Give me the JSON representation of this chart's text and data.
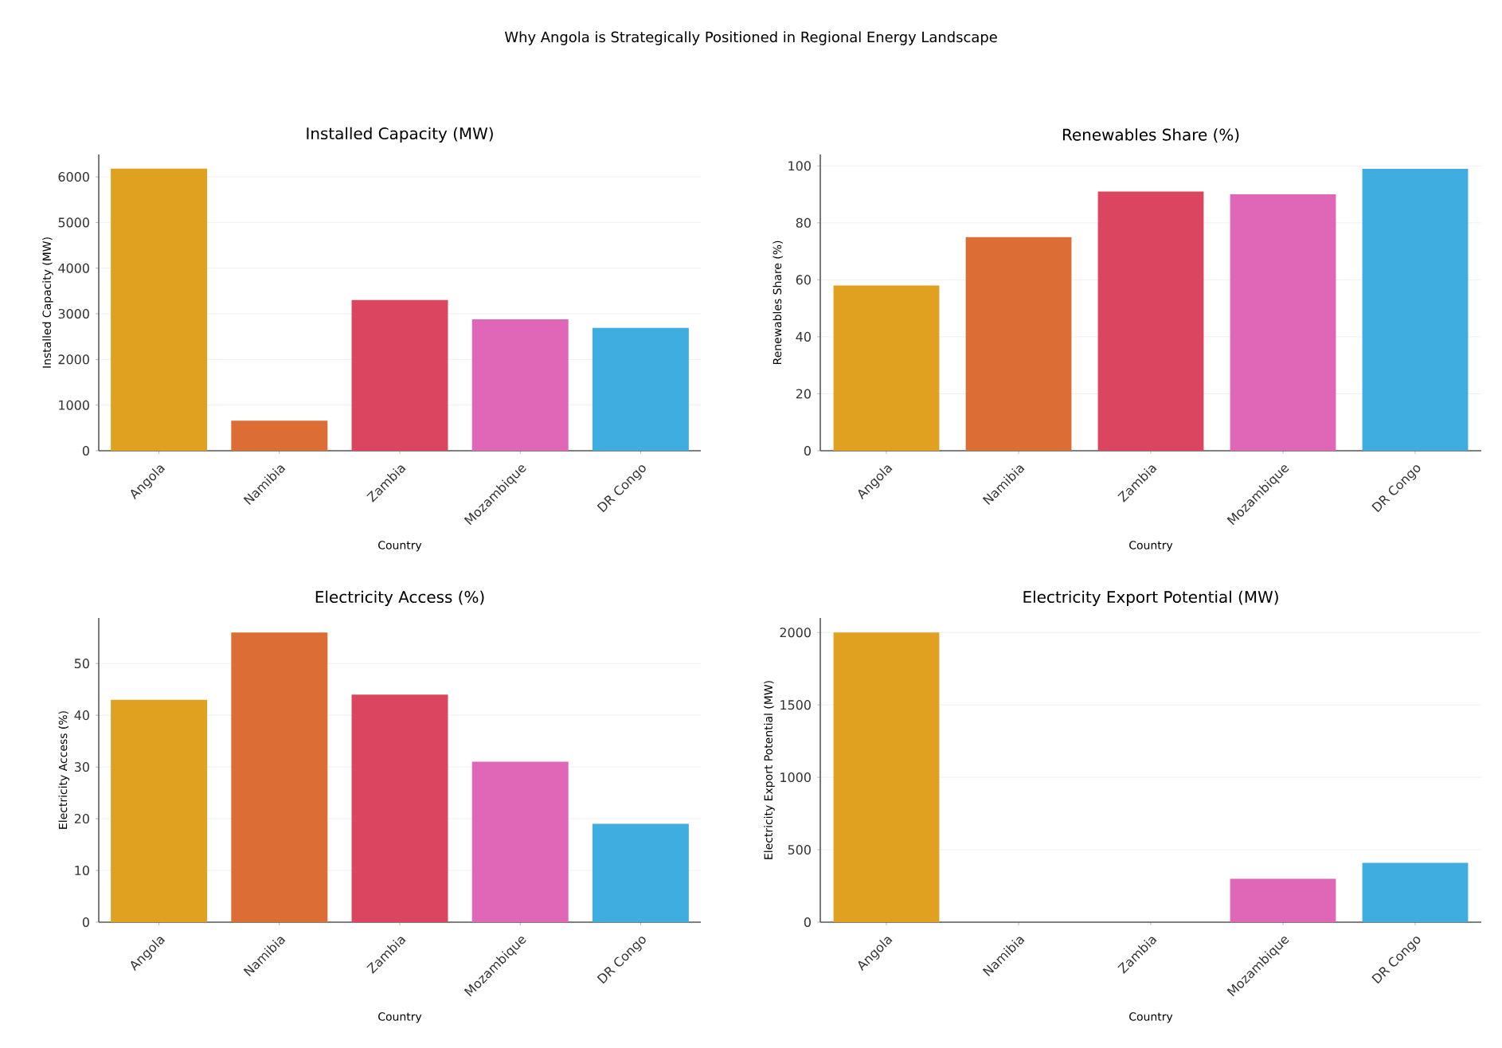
{
  "chart_data": [
    {
      "type": "bar",
      "title": "Installed Capacity (MW)",
      "xlabel": "Country",
      "ylabel": "Installed Capacity (MW)",
      "annotations": [
        "Why Angola is Strategically Positioned in Regional Energy Landscape"
      ],
      "categories": [
        "Angola",
        "Namibia",
        "Zambia",
        "Mozambique",
        "DR Congo"
      ],
      "values": [
        6180,
        660,
        3300,
        2880,
        2690
      ],
      "colors": [
        "#e0a020",
        "#dc6e35",
        "#dc4560",
        "#e066b8",
        "#40ade0"
      ],
      "ylim": [
        0,
        6490
      ],
      "yticks": [
        0,
        1000,
        2000,
        3000,
        4000,
        5000,
        6000
      ],
      "grid": "y"
    },
    {
      "type": "bar",
      "title": "Renewables Share (%)",
      "xlabel": "Country",
      "ylabel": "Renewables Share (%)",
      "categories": [
        "Angola",
        "Namibia",
        "Zambia",
        "Mozambique",
        "DR Congo"
      ],
      "values": [
        58,
        75,
        91,
        90,
        99
      ],
      "colors": [
        "#e0a020",
        "#dc6e35",
        "#dc4560",
        "#e066b8",
        "#40ade0"
      ],
      "ylim": [
        0,
        104
      ],
      "yticks": [
        0,
        20,
        40,
        60,
        80,
        100
      ],
      "grid": "y"
    },
    {
      "type": "bar",
      "title": "Electricity Access (%)",
      "xlabel": "Country",
      "ylabel": "Electricity Access (%)",
      "categories": [
        "Angola",
        "Namibia",
        "Zambia",
        "Mozambique",
        "DR Congo"
      ],
      "values": [
        43,
        56,
        44,
        31,
        19
      ],
      "colors": [
        "#e0a020",
        "#dc6e35",
        "#dc4560",
        "#e066b8",
        "#40ade0"
      ],
      "ylim": [
        0,
        58.8
      ],
      "yticks": [
        0,
        10,
        20,
        30,
        40,
        50
      ],
      "grid": "y"
    },
    {
      "type": "bar",
      "title": "Electricity Export Potential (MW)",
      "xlabel": "Country",
      "ylabel": "Electricity Export Potential (MW)",
      "categories": [
        "Angola",
        "Namibia",
        "Zambia",
        "Mozambique",
        "DR Congo"
      ],
      "values": [
        2000,
        0,
        0,
        300,
        410
      ],
      "colors": [
        "#e0a020",
        "#dc6e35",
        "#dc4560",
        "#e066b8",
        "#40ade0"
      ],
      "ylim": [
        0,
        2100
      ],
      "yticks": [
        0,
        500,
        1000,
        1500,
        2000
      ],
      "grid": "y"
    }
  ]
}
